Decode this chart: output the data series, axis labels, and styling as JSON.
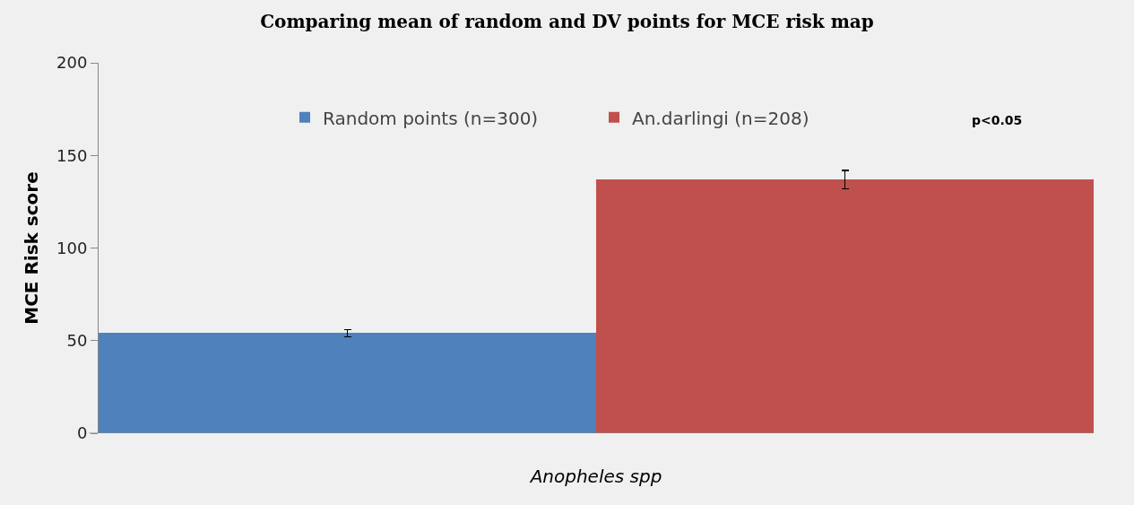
{
  "chart_data": {
    "type": "bar",
    "title": "Comparing mean of random and DV points for MCE risk map",
    "xlabel": "Anopheles spp",
    "ylabel": "MCE Risk score",
    "categories": [
      null
    ],
    "series": [
      {
        "name": "Random points (n=300)",
        "color": "#4f81bd",
        "values": [
          54
        ],
        "errors": [
          2
        ]
      },
      {
        "name": "An.darlingi (n=208)",
        "color": "#c0504d",
        "values": [
          137
        ],
        "errors": [
          5
        ]
      }
    ],
    "ylim": [
      0,
      200
    ],
    "yticks": [
      0,
      50,
      100,
      150,
      200
    ],
    "grid": false,
    "legend": "top",
    "annotations": [
      "p<0.05"
    ]
  }
}
